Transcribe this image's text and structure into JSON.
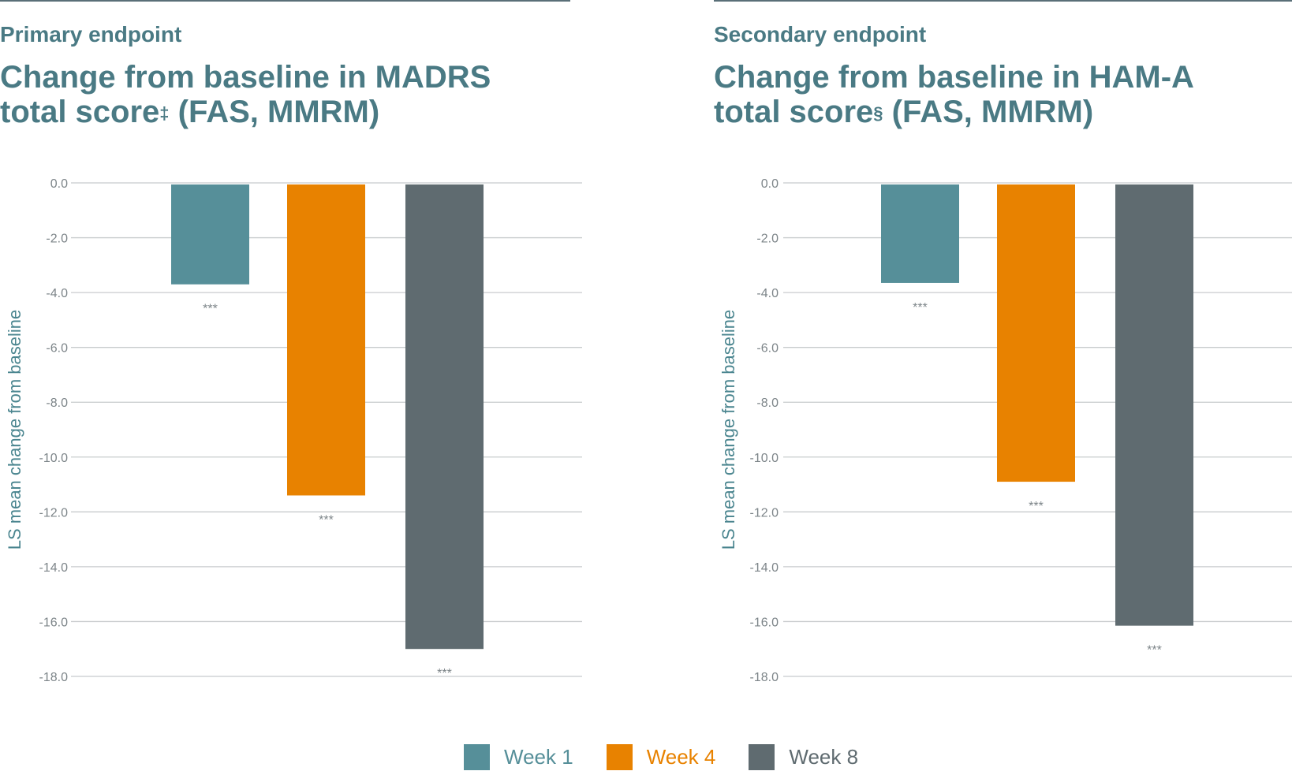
{
  "colors": {
    "week1": "#568f99",
    "week4": "#e88200",
    "week8": "#5f6b70",
    "title": "#4a7a84",
    "axis_label": "#4a858f",
    "tick": "#7d8589",
    "grid": "#c8cbcd",
    "rule": "#5a6f78"
  },
  "panels": [
    {
      "subtitle": "Primary endpoint",
      "title_line1": "Change from baseline in MADRS",
      "title_line2_pre": "total score",
      "title_sup": "‡",
      "title_line2_post": " (FAS, MMRM)"
    },
    {
      "subtitle": "Secondary endpoint",
      "title_line1": "Change from baseline in HAM-A",
      "title_line2_pre": "total score",
      "title_sup": "§",
      "title_line2_post": " (FAS, MMRM)"
    }
  ],
  "chart_data": [
    {
      "type": "bar",
      "categories": [
        "Week 1",
        "Week 4",
        "Week 8"
      ],
      "values": [
        -3.7,
        -11.4,
        -17.0
      ],
      "annotations": [
        "***",
        "***",
        "***"
      ],
      "ylabel": "LS mean change from baseline",
      "ylim": [
        -18.0,
        0.0
      ],
      "yticks": [
        "0.0",
        "-2.0",
        "-4.0",
        "-6.0",
        "-8.0",
        "-10.0",
        "-12.0",
        "-14.0",
        "-16.0",
        "-18.0"
      ],
      "grid": true
    },
    {
      "type": "bar",
      "categories": [
        "Week 1",
        "Week 4",
        "Week 8"
      ],
      "values": [
        -3.65,
        -10.9,
        -16.15
      ],
      "annotations": [
        "***",
        "***",
        "***"
      ],
      "ylabel": "LS mean change from baseline",
      "ylim": [
        -18.0,
        0.0
      ],
      "yticks": [
        "0.0",
        "-2.0",
        "-4.0",
        "-6.0",
        "-8.0",
        "-10.0",
        "-12.0",
        "-14.0",
        "-16.0",
        "-18.0"
      ],
      "grid": true
    }
  ],
  "legend": [
    {
      "label": "Week 1",
      "color": "#568f99"
    },
    {
      "label": "Week 4",
      "color": "#e88200"
    },
    {
      "label": "Week 8",
      "color": "#5f6b70"
    }
  ]
}
